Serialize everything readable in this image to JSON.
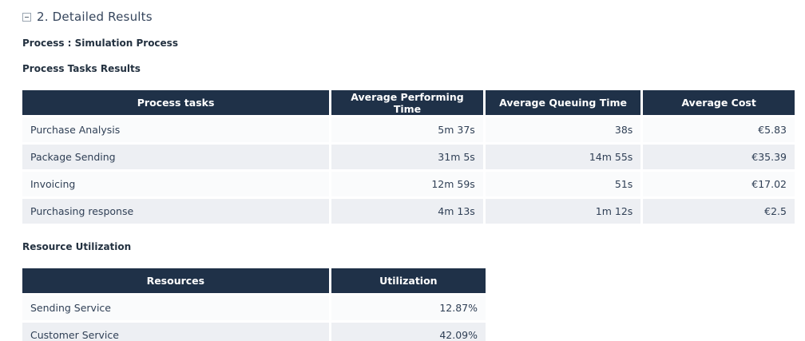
{
  "section": {
    "title": "2. Detailed Results",
    "collapse_icon": "minus-square"
  },
  "labels": {
    "process": "Process : Simulation Process",
    "tasks_results": "Process Tasks Results",
    "resource_utilization": "Resource Utilization"
  },
  "tasks_table": {
    "headers": [
      "Process tasks",
      "Average Performing Time",
      "Average Queuing Time",
      "Average Cost"
    ],
    "rows": [
      {
        "task": "Purchase Analysis",
        "performing": "5m 37s",
        "queuing": "38s",
        "cost": "€5.83"
      },
      {
        "task": "Package Sending",
        "performing": "31m 5s",
        "queuing": "14m 55s",
        "cost": "€35.39"
      },
      {
        "task": "Invoicing",
        "performing": "12m 59s",
        "queuing": "51s",
        "cost": "€17.02"
      },
      {
        "task": "Purchasing response",
        "performing": "4m 13s",
        "queuing": "1m 12s",
        "cost": "€2.5"
      }
    ]
  },
  "resources_table": {
    "headers": [
      "Resources",
      "Utilization"
    ],
    "rows": [
      {
        "resource": "Sending Service",
        "utilization": "12.87%"
      },
      {
        "resource": "Customer Service",
        "utilization": "42.09%"
      }
    ]
  },
  "colors": {
    "table_header_bg": "#1f3148",
    "row_odd_bg": "#fafbfc",
    "row_even_bg": "#edeff3",
    "title_text": "#35455c",
    "body_text": "#2f3f55"
  }
}
